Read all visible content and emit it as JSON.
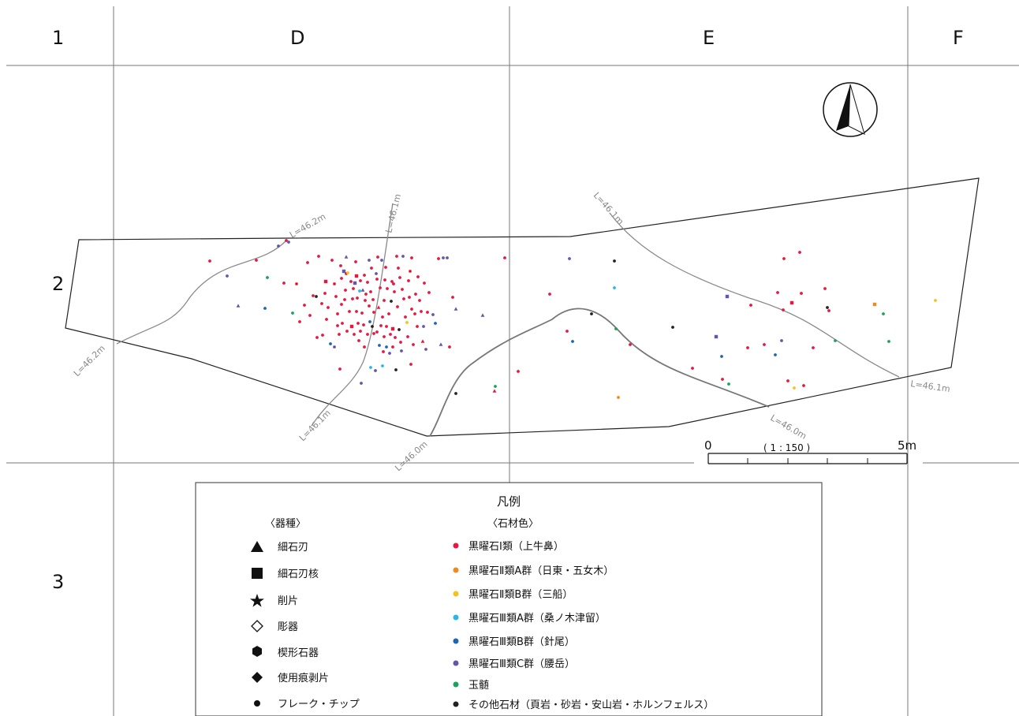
{
  "grid": {
    "columns": [
      "D",
      "E",
      "F"
    ],
    "rows": [
      "1",
      "2",
      "3"
    ]
  },
  "contour_labels": [
    "L=46.2m",
    "L=46.1m",
    "L=46.1m",
    "L=46.2m",
    "L=46.1m",
    "L=46.0m",
    "L=46.0m",
    "L=46.1m"
  ],
  "scale": {
    "start": "0",
    "end": "5m",
    "ratio": "( 1 : 150 )"
  },
  "colors": {
    "obs1_kamiushibana": "#e8173f",
    "obs2a_nitto_gonyogi": "#f08a1c",
    "obs2b_mifune": "#f2c31a",
    "obs3a_kuwanokitsudome": "#29b7e6",
    "obs3b_harino": "#1f66b0",
    "obs3c_koshidake": "#6655a8",
    "chalcedony": "#1aa35a",
    "other": "#222222"
  },
  "legend": {
    "title": "凡例",
    "types_heading": "〈器種〉",
    "materials_heading": "〈石材色〉",
    "types": [
      {
        "symbol": "triangle",
        "label": "細石刃"
      },
      {
        "symbol": "square",
        "label": "細石刃核"
      },
      {
        "symbol": "star",
        "label": "削片"
      },
      {
        "symbol": "diamond-open",
        "label": "彫器"
      },
      {
        "symbol": "hexagon",
        "label": "楔形石器"
      },
      {
        "symbol": "diamond",
        "label": "使用痕剥片"
      },
      {
        "symbol": "circle",
        "label": "フレーク・チップ"
      }
    ],
    "materials": [
      {
        "color": "#e8173f",
        "label": "黒曜石Ⅰ類（上牛鼻）"
      },
      {
        "color": "#f08a1c",
        "label": "黒曜石Ⅱ類A群（日東・五女木）"
      },
      {
        "color": "#f2c31a",
        "label": "黒曜石Ⅱ類B群（三船）"
      },
      {
        "color": "#29b7e6",
        "label": "黒曜石Ⅲ類A群（桑ノ木津留）"
      },
      {
        "color": "#1f66b0",
        "label": "黒曜石Ⅲ類B群（針尾）"
      },
      {
        "color": "#6655a8",
        "label": "黒曜石Ⅲ類C群（腰岳）"
      },
      {
        "color": "#1aa35a",
        "label": "玉髄"
      },
      {
        "color": "#222222",
        "label": "その他石材（頁岩・砂岩・安山岩・ホルンフェルス）"
      }
    ]
  }
}
